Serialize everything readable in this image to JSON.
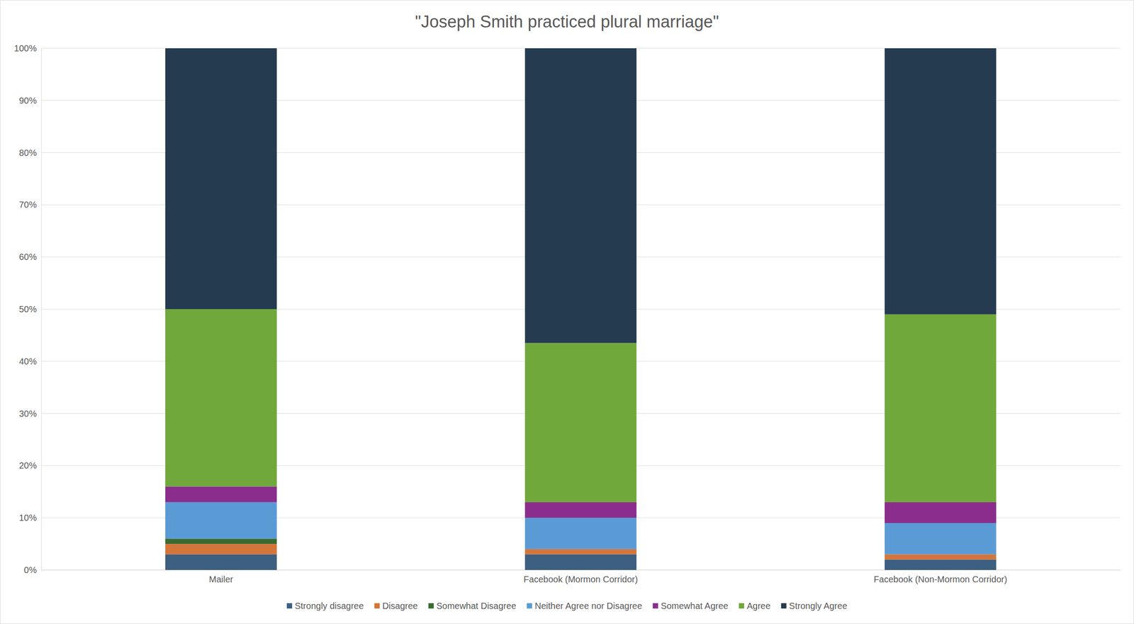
{
  "chart_data": {
    "type": "bar",
    "title": "\"Joseph Smith practiced plural marriage\"",
    "stacked": true,
    "grid": true,
    "legend": "bottom",
    "categories": [
      "Mailer",
      "Facebook (Mormon Corridor)",
      "Facebook (Non-Mormon Corridor)"
    ],
    "series": [
      {
        "name": "Strongly disagree",
        "color": "#3d5f80",
        "values": [
          3,
          3,
          2
        ]
      },
      {
        "name": "Disagree",
        "color": "#d4763b",
        "values": [
          2,
          1,
          1
        ]
      },
      {
        "name": "Somewhat Disagree",
        "color": "#3a6b2f",
        "values": [
          1,
          0,
          0
        ]
      },
      {
        "name": "Neither Agree nor Disagree",
        "color": "#5b9bd5",
        "values": [
          7,
          6,
          6
        ]
      },
      {
        "name": "Somewhat Agree",
        "color": "#8b2d8c",
        "values": [
          3,
          3,
          4
        ]
      },
      {
        "name": "Agree",
        "color": "#70a83b",
        "values": [
          34,
          30.5,
          36
        ]
      },
      {
        "name": "Strongly Agree",
        "color": "#253b4f",
        "values": [
          50,
          56.5,
          51
        ]
      }
    ],
    "ylim": [
      0,
      100
    ],
    "yticks": [
      {
        "value": 0,
        "label": "0%"
      },
      {
        "value": 10,
        "label": "10%"
      },
      {
        "value": 20,
        "label": "20%"
      },
      {
        "value": 30,
        "label": "30%"
      },
      {
        "value": 40,
        "label": "40%"
      },
      {
        "value": 50,
        "label": "50%"
      },
      {
        "value": 60,
        "label": "60%"
      },
      {
        "value": 70,
        "label": "70%"
      },
      {
        "value": 80,
        "label": "80%"
      },
      {
        "value": 90,
        "label": "90%"
      },
      {
        "value": 100,
        "label": "100%"
      }
    ]
  }
}
